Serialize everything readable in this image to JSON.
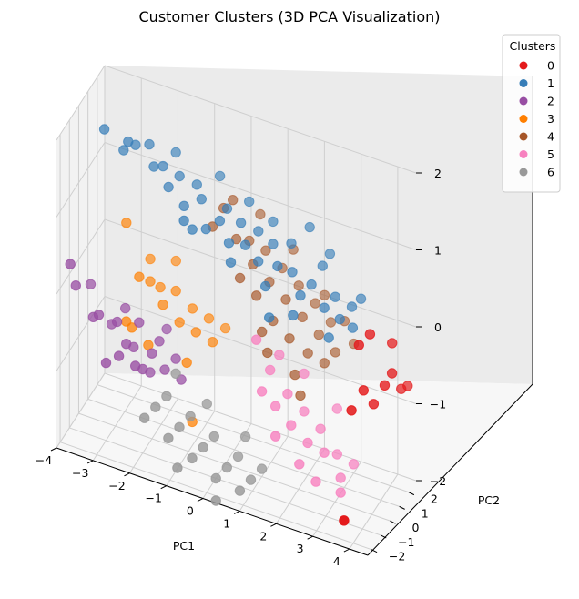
{
  "chart_data": {
    "type": "scatter",
    "title": "Customer Clusters (3D PCA Visualization)",
    "xlabel": "PC1",
    "ylabel": "PC2",
    "zlabel": "",
    "xlim": [
      -4,
      4.5
    ],
    "ylim": [
      -2.4,
      2.8
    ],
    "zlim": [
      -2,
      2
    ],
    "x_ticks": [
      "−4",
      "−3",
      "−2",
      "−1",
      "0",
      "1",
      "2",
      "3",
      "4"
    ],
    "y_ticks": [
      "−2",
      "−1",
      "0",
      "1",
      "2"
    ],
    "z_ticks": [
      "−2",
      "−1",
      "0",
      "1",
      "2"
    ],
    "grid": true,
    "legend": {
      "title": "Clusters",
      "placement": "top-right",
      "entries": [
        {
          "label": "0",
          "color": "#e41a1c"
        },
        {
          "label": "1",
          "color": "#377eb8"
        },
        {
          "label": "2",
          "color": "#984ea3"
        },
        {
          "label": "3",
          "color": "#ff7f00"
        },
        {
          "label": "4",
          "color": "#a65628"
        },
        {
          "label": "5",
          "color": "#f781bf"
        },
        {
          "label": "6",
          "color": "#999999"
        }
      ]
    },
    "series": [
      {
        "name": "0",
        "color": "#e41a1c",
        "points": [
          [
            3.6,
            -0.6,
            -0.6
          ],
          [
            3.8,
            -0.1,
            -0.4
          ],
          [
            4.0,
            0.2,
            -0.6
          ],
          [
            4.2,
            0.6,
            -0.4
          ],
          [
            4.3,
            1.0,
            -0.3
          ],
          [
            4.4,
            1.6,
            -0.6
          ],
          [
            4.5,
            1.9,
            -0.6
          ],
          [
            4.2,
            1.4,
            0.0
          ],
          [
            3.8,
            0.6,
            0.2
          ],
          [
            3.6,
            0.2,
            0.1
          ],
          [
            3.8,
            -2.2,
            -1.7
          ]
        ]
      },
      {
        "name": "1",
        "color": "#377eb8",
        "points": [
          [
            -3.2,
            -0.4,
            1.9
          ],
          [
            -2.6,
            -0.2,
            1.8
          ],
          [
            -2.8,
            0.1,
            1.6
          ],
          [
            -2.5,
            0.2,
            1.7
          ],
          [
            -2.0,
            0.2,
            1.5
          ],
          [
            -1.8,
            0.4,
            1.5
          ],
          [
            -1.6,
            0.2,
            1.3
          ],
          [
            -1.4,
            0.6,
            1.4
          ],
          [
            -1.2,
            0.3,
            1.1
          ],
          [
            -0.8,
            0.6,
            1.2
          ],
          [
            -0.6,
            0.3,
            0.9
          ],
          [
            -0.3,
            0.6,
            1.0
          ],
          [
            0.0,
            0.4,
            0.8
          ],
          [
            0.2,
            0.9,
            1.0
          ],
          [
            0.4,
            0.6,
            0.8
          ],
          [
            0.7,
            0.8,
            0.6
          ],
          [
            1.0,
            1.2,
            0.8
          ],
          [
            1.2,
            0.9,
            0.6
          ],
          [
            1.5,
            1.3,
            0.5
          ],
          [
            1.8,
            1.0,
            0.3
          ],
          [
            2.0,
            1.4,
            0.4
          ],
          [
            2.4,
            1.2,
            0.2
          ],
          [
            2.6,
            1.6,
            0.3
          ],
          [
            2.8,
            1.3,
            0.1
          ],
          [
            3.0,
            1.8,
            0.2
          ],
          [
            3.1,
            1.5,
            0.0
          ],
          [
            -1.0,
            0.9,
            1.3
          ],
          [
            -0.2,
            1.0,
            1.1
          ],
          [
            0.6,
            1.2,
            0.9
          ],
          [
            1.4,
            1.6,
            0.8
          ],
          [
            2.2,
            1.8,
            0.6
          ],
          [
            -2.2,
            0.5,
            1.7
          ],
          [
            -1.1,
            -0.1,
            1.0
          ],
          [
            0.1,
            0.2,
            0.6
          ],
          [
            1.0,
            0.4,
            0.4
          ],
          [
            1.7,
            0.6,
            0.1
          ],
          [
            2.6,
            0.9,
            -0.1
          ],
          [
            -0.5,
            1.4,
            1.4
          ],
          [
            1.8,
            2.0,
            1.0
          ],
          [
            0.9,
            1.6,
            1.0
          ],
          [
            3.2,
            2.0,
            0.3
          ],
          [
            -1.6,
            1.0,
            1.6
          ],
          [
            0.3,
            1.4,
            1.2
          ],
          [
            2.3,
            2.2,
            0.7
          ],
          [
            -0.9,
            0.0,
            0.9
          ],
          [
            1.2,
            0.0,
            0.1
          ]
        ]
      },
      {
        "name": "2",
        "color": "#984ea3",
        "points": [
          [
            -3.9,
            -1.3,
            0.2
          ],
          [
            -3.8,
            -1.1,
            -0.1
          ],
          [
            -3.4,
            -0.8,
            -0.5
          ],
          [
            -3.2,
            -1.0,
            -0.4
          ],
          [
            -3.0,
            -0.4,
            -0.6
          ],
          [
            -2.8,
            -0.6,
            -0.5
          ],
          [
            -2.6,
            -1.2,
            -0.8
          ],
          [
            -2.5,
            -0.8,
            -0.7
          ],
          [
            -2.4,
            -0.4,
            -0.8
          ],
          [
            -2.3,
            -0.2,
            -0.5
          ],
          [
            -2.2,
            -1.0,
            -0.9
          ],
          [
            -2.1,
            -0.6,
            -1.0
          ],
          [
            -2.0,
            -0.2,
            -1.1
          ],
          [
            -1.9,
            -0.4,
            -0.8
          ],
          [
            -1.8,
            0.0,
            -0.7
          ],
          [
            -1.6,
            -0.2,
            -1.0
          ],
          [
            -1.4,
            0.2,
            -0.9
          ],
          [
            -1.2,
            0.0,
            -1.1
          ],
          [
            -3.6,
            -0.3,
            -0.2
          ],
          [
            -2.7,
            -0.1,
            -0.4
          ],
          [
            -2.9,
            -1.4,
            -0.9
          ],
          [
            -1.7,
            0.4,
            -0.6
          ]
        ]
      },
      {
        "name": "3",
        "color": "#ff7f00",
        "points": [
          [
            -2.8,
            0.4,
            0.6
          ],
          [
            -2.4,
            0.2,
            0.0
          ],
          [
            -2.2,
            0.6,
            -0.1
          ],
          [
            -2.0,
            0.9,
            -0.2
          ],
          [
            -1.8,
            0.4,
            -0.3
          ],
          [
            -1.6,
            1.0,
            -0.2
          ],
          [
            -1.4,
            0.6,
            -0.5
          ],
          [
            -1.2,
            1.2,
            -0.4
          ],
          [
            -1.0,
            0.8,
            -0.6
          ],
          [
            -0.8,
            1.4,
            -0.5
          ],
          [
            -0.6,
            1.0,
            -0.7
          ],
          [
            -2.6,
            -0.4,
            -0.5
          ],
          [
            -2.5,
            -0.2,
            -0.6
          ],
          [
            -2.3,
            1.0,
            0.1
          ],
          [
            -1.1,
            0.2,
            -0.9
          ],
          [
            -0.9,
            0.0,
            -1.6
          ],
          [
            -1.7,
            1.4,
            0.1
          ],
          [
            -0.4,
            1.6,
            -0.6
          ],
          [
            -2.1,
            0.0,
            -0.8
          ]
        ]
      },
      {
        "name": "4",
        "color": "#a65628",
        "points": [
          [
            -0.4,
            1.4,
            1.0
          ],
          [
            -0.2,
            1.6,
            1.1
          ],
          [
            0.0,
            1.2,
            0.7
          ],
          [
            0.2,
            1.8,
            0.6
          ],
          [
            0.4,
            1.4,
            0.4
          ],
          [
            0.6,
            2.0,
            0.5
          ],
          [
            0.8,
            1.6,
            0.2
          ],
          [
            1.0,
            2.2,
            0.3
          ],
          [
            1.2,
            1.8,
            0.0
          ],
          [
            1.4,
            2.4,
            0.1
          ],
          [
            1.6,
            2.0,
            -0.2
          ],
          [
            1.8,
            2.6,
            -0.1
          ],
          [
            2.0,
            2.2,
            -0.4
          ],
          [
            2.2,
            2.7,
            -0.3
          ],
          [
            0.6,
            1.0,
            0.1
          ],
          [
            1.0,
            1.2,
            -0.2
          ],
          [
            1.4,
            1.4,
            -0.4
          ],
          [
            1.8,
            1.8,
            -0.6
          ],
          [
            2.2,
            2.0,
            -0.7
          ],
          [
            0.2,
            0.8,
            0.3
          ],
          [
            0.8,
            0.8,
            -0.3
          ],
          [
            1.6,
            1.2,
            -0.8
          ],
          [
            2.4,
            2.4,
            -0.6
          ],
          [
            -0.6,
            1.0,
            0.8
          ],
          [
            0.4,
            2.2,
            0.9
          ],
          [
            1.2,
            2.6,
            0.5
          ],
          [
            2.0,
            2.8,
            0.0
          ],
          [
            2.6,
            2.6,
            -0.2
          ],
          [
            1.0,
            0.6,
            -0.5
          ],
          [
            1.8,
            1.0,
            -1.0
          ],
          [
            2.8,
            2.8,
            -0.5
          ]
        ]
      },
      {
        "name": "5",
        "color": "#f781bf",
        "points": [
          [
            0.9,
            -0.2,
            -0.2
          ],
          [
            1.2,
            0.1,
            -0.6
          ],
          [
            1.1,
            -0.4,
            -0.8
          ],
          [
            1.4,
            -0.1,
            -1.0
          ],
          [
            1.6,
            0.4,
            -0.9
          ],
          [
            1.8,
            0.0,
            -1.2
          ],
          [
            2.0,
            0.6,
            -1.1
          ],
          [
            2.2,
            0.2,
            -1.4
          ],
          [
            2.4,
            0.8,
            -1.3
          ],
          [
            2.6,
            0.4,
            -1.5
          ],
          [
            2.8,
            1.0,
            -1.6
          ],
          [
            3.0,
            0.6,
            -1.8
          ],
          [
            3.2,
            1.2,
            -1.7
          ],
          [
            1.3,
            0.7,
            -0.5
          ],
          [
            1.5,
            -0.5,
            -1.3
          ],
          [
            2.1,
            -0.3,
            -1.6
          ],
          [
            2.7,
            1.4,
            -1.1
          ],
          [
            3.1,
            0.2,
            -1.9
          ],
          [
            1.9,
            1.0,
            -0.7
          ],
          [
            2.5,
            -0.1,
            -1.8
          ]
        ]
      },
      {
        "name": "6",
        "color": "#999999",
        "points": [
          [
            -1.8,
            -1.6,
            -1.4
          ],
          [
            -1.6,
            -1.2,
            -1.3
          ],
          [
            -1.4,
            -0.8,
            -1.2
          ],
          [
            -1.2,
            -1.4,
            -1.6
          ],
          [
            -1.0,
            -1.0,
            -1.5
          ],
          [
            -0.8,
            -0.6,
            -1.4
          ],
          [
            -0.6,
            -1.2,
            -1.8
          ],
          [
            -0.4,
            -0.8,
            -1.7
          ],
          [
            -0.2,
            -0.4,
            -1.6
          ],
          [
            0.0,
            -1.0,
            -2.0
          ],
          [
            0.2,
            -0.6,
            -1.9
          ],
          [
            0.4,
            -0.2,
            -1.8
          ],
          [
            0.6,
            -0.8,
            -2.1
          ],
          [
            0.8,
            -0.4,
            -2.0
          ],
          [
            1.0,
            0.0,
            -1.9
          ],
          [
            -0.9,
            -1.6,
            -1.9
          ],
          [
            0.1,
            -1.4,
            -2.2
          ],
          [
            -1.3,
            -0.2,
            -1.0
          ],
          [
            0.5,
            0.2,
            -1.6
          ],
          [
            -0.5,
            0.0,
            -1.3
          ]
        ]
      }
    ]
  }
}
